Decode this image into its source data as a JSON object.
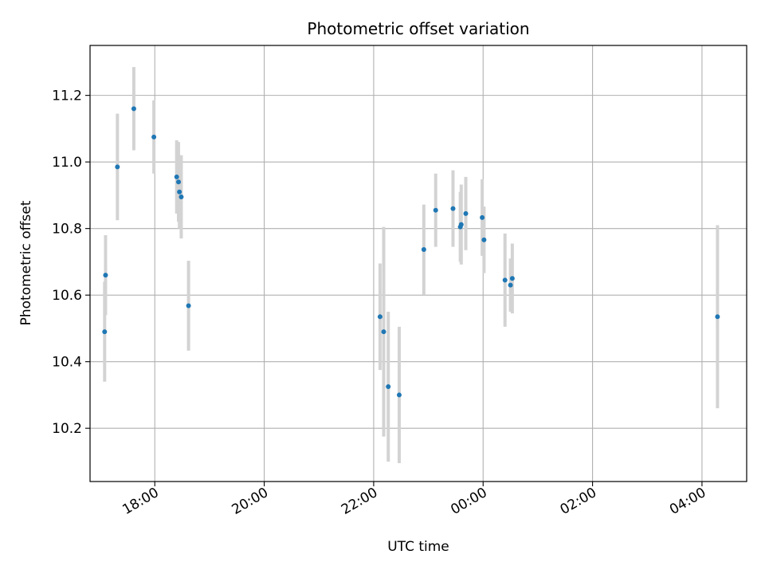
{
  "chart_data": {
    "type": "scatter",
    "title": "Photometric offset variation",
    "xlabel": "UTC time",
    "ylabel": "Photometric offset",
    "grid": true,
    "legend": "none",
    "x_tick_labels": [
      "18:00",
      "20:00",
      "22:00",
      "00:00",
      "02:00",
      "04:00"
    ],
    "y_tick_labels": [
      "10.2",
      "10.4",
      "10.6",
      "10.8",
      "11.0",
      "11.2"
    ],
    "y_ticks": [
      10.2,
      10.4,
      10.6,
      10.8,
      11.0,
      11.2
    ],
    "xlim": [
      "16:49",
      "04:49"
    ],
    "ylim": [
      10.04,
      11.35
    ],
    "marker_color": "#1f77b4",
    "errorbar_color": "#d3d3d3",
    "series": [
      {
        "points": [
          {
            "x": "17:05",
            "y": 10.49,
            "err": 0.15
          },
          {
            "x": "17:06",
            "y": 10.66,
            "err": 0.12
          },
          {
            "x": "17:19",
            "y": 10.985,
            "err": 0.16
          },
          {
            "x": "17:37",
            "y": 11.16,
            "err": 0.125
          },
          {
            "x": "17:59",
            "y": 11.075,
            "err": 0.11
          },
          {
            "x": "18:24",
            "y": 10.955,
            "err": 0.11
          },
          {
            "x": "18:26",
            "y": 10.94,
            "err": 0.12
          },
          {
            "x": "18:27",
            "y": 10.91,
            "err": 0.11
          },
          {
            "x": "18:29",
            "y": 10.895,
            "err": 0.125
          },
          {
            "x": "18:37",
            "y": 10.568,
            "err": 0.135
          },
          {
            "x": "22:07",
            "y": 10.535,
            "err": 0.16
          },
          {
            "x": "22:11",
            "y": 10.49,
            "err": 0.315
          },
          {
            "x": "22:16",
            "y": 10.325,
            "err": 0.225
          },
          {
            "x": "22:28",
            "y": 10.3,
            "err": 0.205
          },
          {
            "x": "22:55",
            "y": 10.737,
            "err": 0.135
          },
          {
            "x": "23:08",
            "y": 10.855,
            "err": 0.11
          },
          {
            "x": "23:27",
            "y": 10.86,
            "err": 0.115
          },
          {
            "x": "23:35",
            "y": 10.805,
            "err": 0.105
          },
          {
            "x": "23:36",
            "y": 10.812,
            "err": 0.12
          },
          {
            "x": "23:41",
            "y": 10.845,
            "err": 0.11
          },
          {
            "x": "23:59",
            "y": 10.833,
            "err": 0.115
          },
          {
            "x": "00:01",
            "y": 10.766,
            "err": 0.1
          },
          {
            "x": "00:24",
            "y": 10.645,
            "err": 0.14
          },
          {
            "x": "00:30",
            "y": 10.63,
            "err": 0.08
          },
          {
            "x": "00:32",
            "y": 10.65,
            "err": 0.105
          },
          {
            "x": "04:17",
            "y": 10.535,
            "err": 0.275
          }
        ]
      }
    ]
  }
}
